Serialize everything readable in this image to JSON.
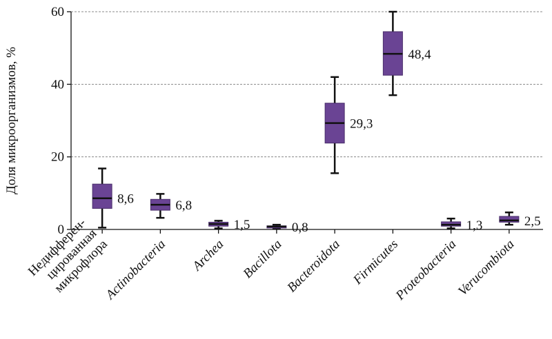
{
  "chart_data": {
    "type": "box",
    "ylabel": "Доля микроорганизмов, %",
    "ylim": [
      0,
      60
    ],
    "yticks": [
      0,
      20,
      40,
      60
    ],
    "grid": "horizontal-dashed",
    "box_color": "#6a4494",
    "categories": [
      {
        "label_lines": [
          "Недифферен-",
          "цированная",
          "микрофлора"
        ],
        "italic": false,
        "min": 0.5,
        "q1": 5.8,
        "median": 8.6,
        "q3": 12.5,
        "max": 16.8,
        "median_label": "8,6"
      },
      {
        "label_lines": [
          "Actinobacteria"
        ],
        "italic": true,
        "min": 3.2,
        "q1": 5.3,
        "median": 6.8,
        "q3": 8.3,
        "max": 9.8,
        "median_label": "6,8"
      },
      {
        "label_lines": [
          "Archea"
        ],
        "italic": true,
        "min": 0.3,
        "q1": 0.9,
        "median": 1.5,
        "q3": 2.0,
        "max": 2.4,
        "median_label": "1,5"
      },
      {
        "label_lines": [
          "Bacillota"
        ],
        "italic": true,
        "min": 0.2,
        "q1": 0.4,
        "median": 0.8,
        "q3": 1.0,
        "max": 1.3,
        "median_label": "0,8"
      },
      {
        "label_lines": [
          "Bacteroidota"
        ],
        "italic": true,
        "min": 15.5,
        "q1": 23.8,
        "median": 29.3,
        "q3": 34.8,
        "max": 42.0,
        "median_label": "29,3"
      },
      {
        "label_lines": [
          "Firmicutes"
        ],
        "italic": true,
        "min": 37.0,
        "q1": 42.5,
        "median": 48.4,
        "q3": 54.5,
        "max": 60.0,
        "median_label": "48,4"
      },
      {
        "label_lines": [
          "Proteobacteria"
        ],
        "italic": true,
        "min": 0.3,
        "q1": 0.9,
        "median": 1.3,
        "q3": 2.1,
        "max": 3.0,
        "median_label": "1,3"
      },
      {
        "label_lines": [
          "Verucombiota"
        ],
        "italic": true,
        "min": 1.3,
        "q1": 2.0,
        "median": 2.5,
        "q3": 3.6,
        "max": 4.7,
        "median_label": "2,5"
      }
    ]
  }
}
